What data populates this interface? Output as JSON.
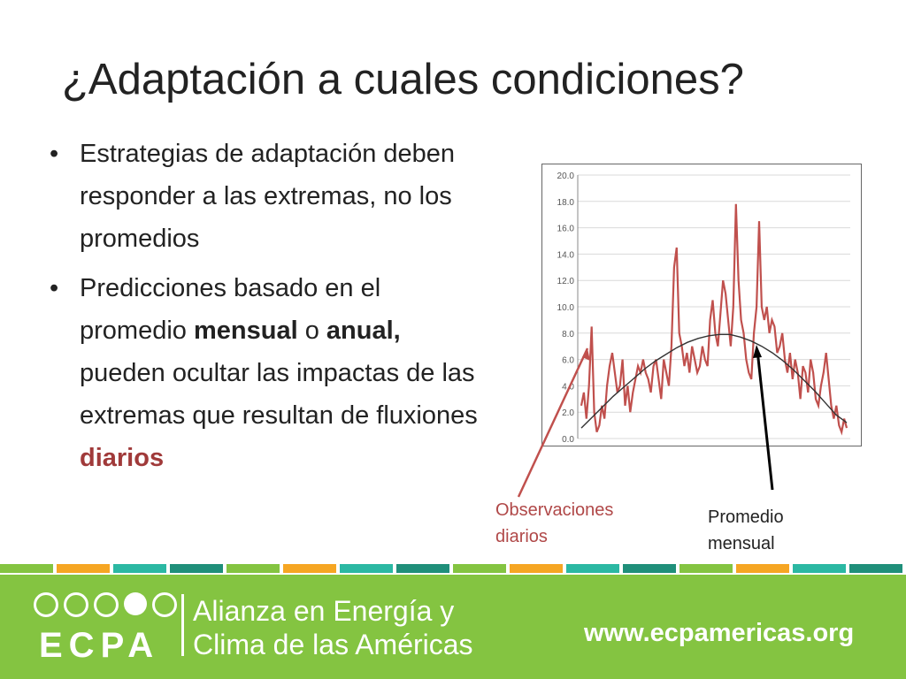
{
  "slide": {
    "title": "¿Adaptación a cuales condiciones?",
    "bullet1": "Estrategias de adaptación deben responder a las extremas, no los promedios",
    "bullet2": {
      "part1": "Predicciones basado en el promedio ",
      "bold1": "mensual",
      "part2": " o ",
      "bold2": "anual,",
      "part3": " pueden ocultar las impactas de las extremas que resultan de fluxiones ",
      "highlight": "diarios"
    },
    "label_obs": "Observaciones diarios",
    "label_avg": "Promedio mensual"
  },
  "chart_data": {
    "type": "line",
    "ylim": [
      0,
      20
    ],
    "yticks": [
      "0.0",
      "2.0",
      "4.0",
      "6.0",
      "8.0",
      "10.0",
      "12.0",
      "14.0",
      "16.0",
      "18.0",
      "20.0"
    ],
    "grid": true,
    "series": [
      {
        "values": [
          2.5,
          3.5,
          1.5,
          4,
          8.5,
          2,
          0.5,
          1,
          2.5,
          1.5,
          4,
          5.5,
          6.5,
          5,
          3.5,
          4,
          6,
          2.5,
          4,
          2,
          3.5,
          4.5,
          5.5,
          5,
          6,
          5,
          4.5,
          3.5,
          5.5,
          6,
          4.5,
          3,
          6,
          5,
          4,
          7,
          13,
          14.5,
          8,
          7,
          5.5,
          6.5,
          5,
          7,
          6,
          5,
          5.5,
          7,
          6,
          5.5,
          9,
          10.5,
          8,
          7,
          9.5,
          12,
          11,
          9,
          7,
          10,
          17.8,
          12,
          9,
          8,
          6,
          5,
          4.5,
          8,
          10,
          16.5,
          10,
          9,
          10,
          8,
          9,
          8.5,
          6.5,
          7,
          8,
          6,
          5,
          6.5,
          4.5,
          6,
          5,
          3,
          5.5,
          5,
          3.5,
          6,
          5,
          3,
          2.5,
          4,
          5,
          6.5,
          4.5,
          2.5,
          1.5,
          2.5,
          1,
          0.5,
          1.5,
          0.8
        ],
        "color": "#c0504d"
      },
      {
        "values": [
          0.8,
          1.6,
          2.4,
          3.2,
          3.9,
          4.6,
          5.3,
          5.9,
          6.4,
          6.9,
          7.3,
          7.6,
          7.8,
          7.9,
          7.9,
          7.7,
          7.4,
          7,
          6.5,
          5.9,
          5.2,
          4.4,
          3.6,
          2.7,
          1.8,
          1.2
        ],
        "color": "#333333"
      }
    ]
  },
  "footer": {
    "logo_text": "ECPA",
    "org_line1": "Alianza en Energía y",
    "org_line2": "Clima de las Américas",
    "url": "www.ecpamericas.org",
    "brand_green": "#84c441",
    "stripe_colors": [
      "#84c441",
      "#f6a623",
      "#2bb8a3",
      "#1f8f7a",
      "#84c441",
      "#f6a623",
      "#2bb8a3",
      "#1f8f7a",
      "#84c441",
      "#f6a623",
      "#2bb8a3",
      "#1f8f7a",
      "#84c441",
      "#f6a623",
      "#2bb8a3",
      "#1f8f7a"
    ]
  }
}
